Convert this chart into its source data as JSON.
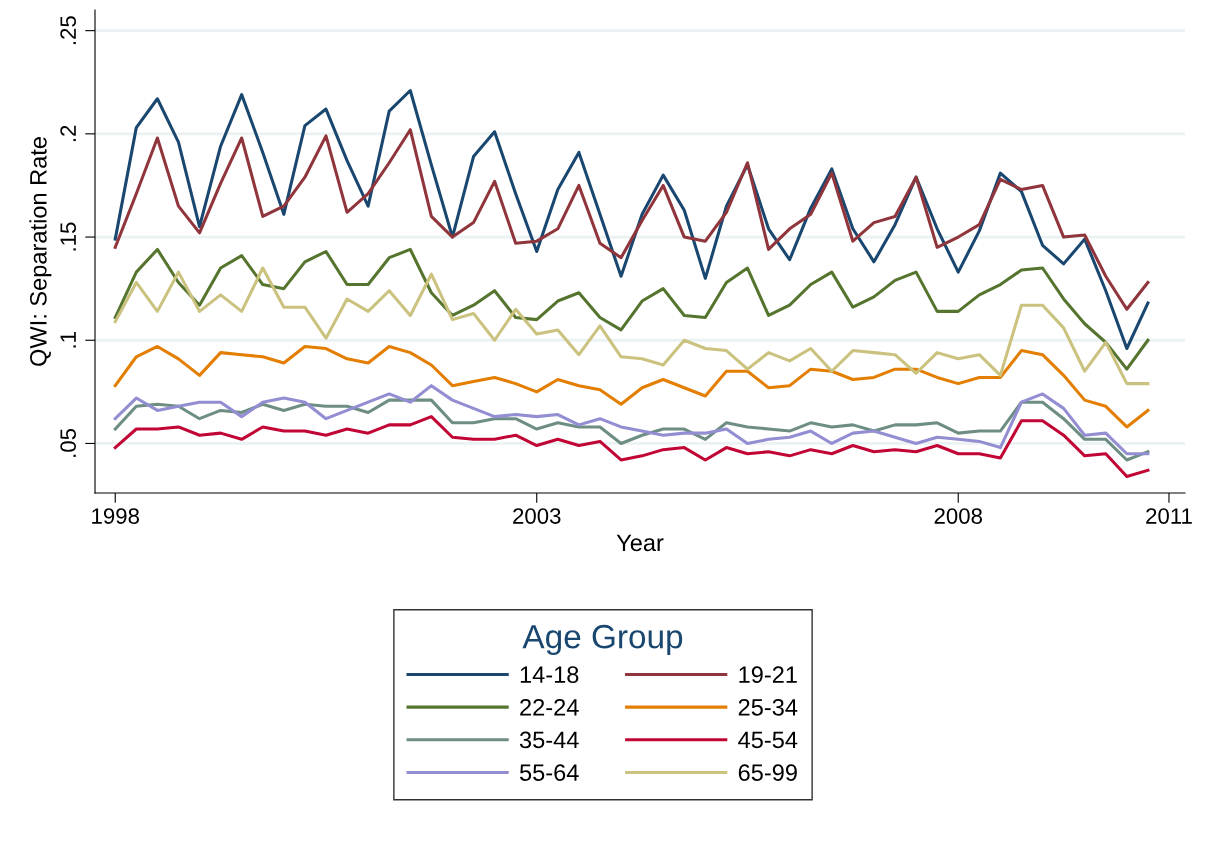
{
  "chart_data": {
    "type": "line",
    "xlabel": "Year",
    "ylabel": "QWI: Separation Rate",
    "legend_title": "Age Group",
    "legend": "bottom",
    "grid": "y",
    "marker": "none",
    "line_style": "solid",
    "x": [
      1998.0,
      1998.25,
      1998.5,
      1998.75,
      1999.0,
      1999.25,
      1999.5,
      1999.75,
      2000.0,
      2000.25,
      2000.5,
      2000.75,
      2001.0,
      2001.25,
      2001.5,
      2001.75,
      2002.0,
      2002.25,
      2002.5,
      2002.75,
      2003.0,
      2003.25,
      2003.5,
      2003.75,
      2004.0,
      2004.25,
      2004.5,
      2004.75,
      2005.0,
      2005.25,
      2005.5,
      2005.75,
      2006.0,
      2006.25,
      2006.5,
      2006.75,
      2007.0,
      2007.25,
      2007.5,
      2007.75,
      2008.0,
      2008.25,
      2008.5,
      2008.75,
      2009.0,
      2009.25,
      2009.5,
      2009.75,
      2010.0,
      2010.25
    ],
    "xlim": [
      1997.76,
      2010.69
    ],
    "xticks": [
      1998,
      2003,
      2008,
      {
        "value": 2010.5,
        "label": "2011"
      }
    ],
    "ylim": [
      0.026,
      0.26
    ],
    "yticks": [
      {
        "value": 0.05,
        "label": ".05"
      },
      {
        "value": 0.1,
        "label": ".1"
      },
      {
        "value": 0.15,
        "label": ".15"
      },
      {
        "value": 0.2,
        "label": ".2"
      },
      {
        "value": 0.25,
        "label": ".25"
      }
    ],
    "series": [
      {
        "name": "14-18",
        "color": "#1a476f",
        "values": [
          0.149,
          0.203,
          0.217,
          0.196,
          0.155,
          0.194,
          0.219,
          0.191,
          0.161,
          0.204,
          0.212,
          0.187,
          0.165,
          0.211,
          0.221,
          0.185,
          0.15,
          0.189,
          0.201,
          0.171,
          0.143,
          0.173,
          0.191,
          0.161,
          0.131,
          0.161,
          0.18,
          0.163,
          0.13,
          0.165,
          0.185,
          0.154,
          0.139,
          0.164,
          0.183,
          0.154,
          0.138,
          0.156,
          0.179,
          0.154,
          0.133,
          0.153,
          0.181,
          0.172,
          0.146,
          0.137,
          0.149,
          0.124,
          0.096,
          0.118
        ]
      },
      {
        "name": "19-21",
        "color": "#90353b",
        "values": [
          0.145,
          0.171,
          0.198,
          0.165,
          0.152,
          0.176,
          0.198,
          0.16,
          0.165,
          0.179,
          0.199,
          0.162,
          0.171,
          0.186,
          0.202,
          0.16,
          0.15,
          0.157,
          0.177,
          0.147,
          0.148,
          0.154,
          0.175,
          0.147,
          0.14,
          0.158,
          0.175,
          0.15,
          0.148,
          0.162,
          0.186,
          0.144,
          0.154,
          0.161,
          0.181,
          0.148,
          0.157,
          0.16,
          0.179,
          0.145,
          0.15,
          0.156,
          0.178,
          0.173,
          0.175,
          0.15,
          0.151,
          0.131,
          0.115,
          0.128
        ]
      },
      {
        "name": "22-24",
        "color": "#55752f",
        "values": [
          0.111,
          0.133,
          0.144,
          0.128,
          0.117,
          0.135,
          0.141,
          0.127,
          0.125,
          0.138,
          0.143,
          0.127,
          0.127,
          0.14,
          0.144,
          0.123,
          0.112,
          0.117,
          0.124,
          0.111,
          0.11,
          0.119,
          0.123,
          0.111,
          0.105,
          0.119,
          0.125,
          0.112,
          0.111,
          0.128,
          0.135,
          0.112,
          0.117,
          0.127,
          0.133,
          0.116,
          0.121,
          0.129,
          0.133,
          0.114,
          0.114,
          0.122,
          0.127,
          0.134,
          0.135,
          0.12,
          0.108,
          0.099,
          0.086,
          0.1
        ]
      },
      {
        "name": "25-34",
        "color": "#e37e00",
        "values": [
          0.078,
          0.092,
          0.097,
          0.091,
          0.083,
          0.094,
          0.093,
          0.092,
          0.089,
          0.097,
          0.096,
          0.091,
          0.089,
          0.097,
          0.094,
          0.088,
          0.078,
          0.08,
          0.082,
          0.079,
          0.075,
          0.081,
          0.078,
          0.076,
          0.069,
          0.077,
          0.081,
          0.077,
          0.073,
          0.085,
          0.085,
          0.077,
          0.078,
          0.086,
          0.085,
          0.081,
          0.082,
          0.086,
          0.086,
          0.082,
          0.079,
          0.082,
          0.082,
          0.095,
          0.093,
          0.083,
          0.071,
          0.068,
          0.058,
          0.066
        ]
      },
      {
        "name": "35-44",
        "color": "#6e8e84",
        "values": [
          0.057,
          0.068,
          0.069,
          0.068,
          0.062,
          0.066,
          0.065,
          0.069,
          0.066,
          0.069,
          0.068,
          0.068,
          0.065,
          0.071,
          0.071,
          0.071,
          0.06,
          0.06,
          0.062,
          0.062,
          0.057,
          0.06,
          0.058,
          0.058,
          0.05,
          0.054,
          0.057,
          0.057,
          0.052,
          0.06,
          0.058,
          0.057,
          0.056,
          0.06,
          0.058,
          0.059,
          0.056,
          0.059,
          0.059,
          0.06,
          0.055,
          0.056,
          0.056,
          0.07,
          0.07,
          0.062,
          0.052,
          0.052,
          0.042,
          0.046
        ]
      },
      {
        "name": "45-54",
        "color": "#c10534",
        "values": [
          0.048,
          0.057,
          0.057,
          0.058,
          0.054,
          0.055,
          0.052,
          0.058,
          0.056,
          0.056,
          0.054,
          0.057,
          0.055,
          0.059,
          0.059,
          0.063,
          0.053,
          0.052,
          0.052,
          0.054,
          0.049,
          0.052,
          0.049,
          0.051,
          0.042,
          0.044,
          0.047,
          0.048,
          0.042,
          0.048,
          0.045,
          0.046,
          0.044,
          0.047,
          0.045,
          0.049,
          0.046,
          0.047,
          0.046,
          0.049,
          0.045,
          0.045,
          0.043,
          0.061,
          0.061,
          0.054,
          0.044,
          0.045,
          0.034,
          0.037
        ]
      },
      {
        "name": "55-64",
        "color": "#938dd2",
        "values": [
          0.062,
          0.072,
          0.066,
          0.068,
          0.07,
          0.07,
          0.063,
          0.07,
          0.072,
          0.07,
          0.062,
          0.066,
          0.07,
          0.074,
          0.07,
          0.078,
          0.071,
          0.067,
          0.063,
          0.064,
          0.063,
          0.064,
          0.059,
          0.062,
          0.058,
          0.056,
          0.054,
          0.055,
          0.055,
          0.057,
          0.05,
          0.052,
          0.053,
          0.056,
          0.05,
          0.055,
          0.056,
          0.053,
          0.05,
          0.053,
          0.052,
          0.051,
          0.048,
          0.07,
          0.074,
          0.067,
          0.054,
          0.055,
          0.045,
          0.045
        ]
      },
      {
        "name": "65-99",
        "color": "#cac27e",
        "values": [
          0.109,
          0.128,
          0.114,
          0.133,
          0.114,
          0.122,
          0.114,
          0.135,
          0.116,
          0.116,
          0.101,
          0.12,
          0.114,
          0.124,
          0.112,
          0.132,
          0.11,
          0.113,
          0.1,
          0.115,
          0.103,
          0.105,
          0.093,
          0.107,
          0.092,
          0.091,
          0.088,
          0.1,
          0.096,
          0.095,
          0.086,
          0.094,
          0.09,
          0.096,
          0.085,
          0.095,
          0.094,
          0.093,
          0.084,
          0.094,
          0.091,
          0.093,
          0.083,
          0.117,
          0.117,
          0.106,
          0.085,
          0.099,
          0.079,
          0.079
        ]
      }
    ]
  }
}
